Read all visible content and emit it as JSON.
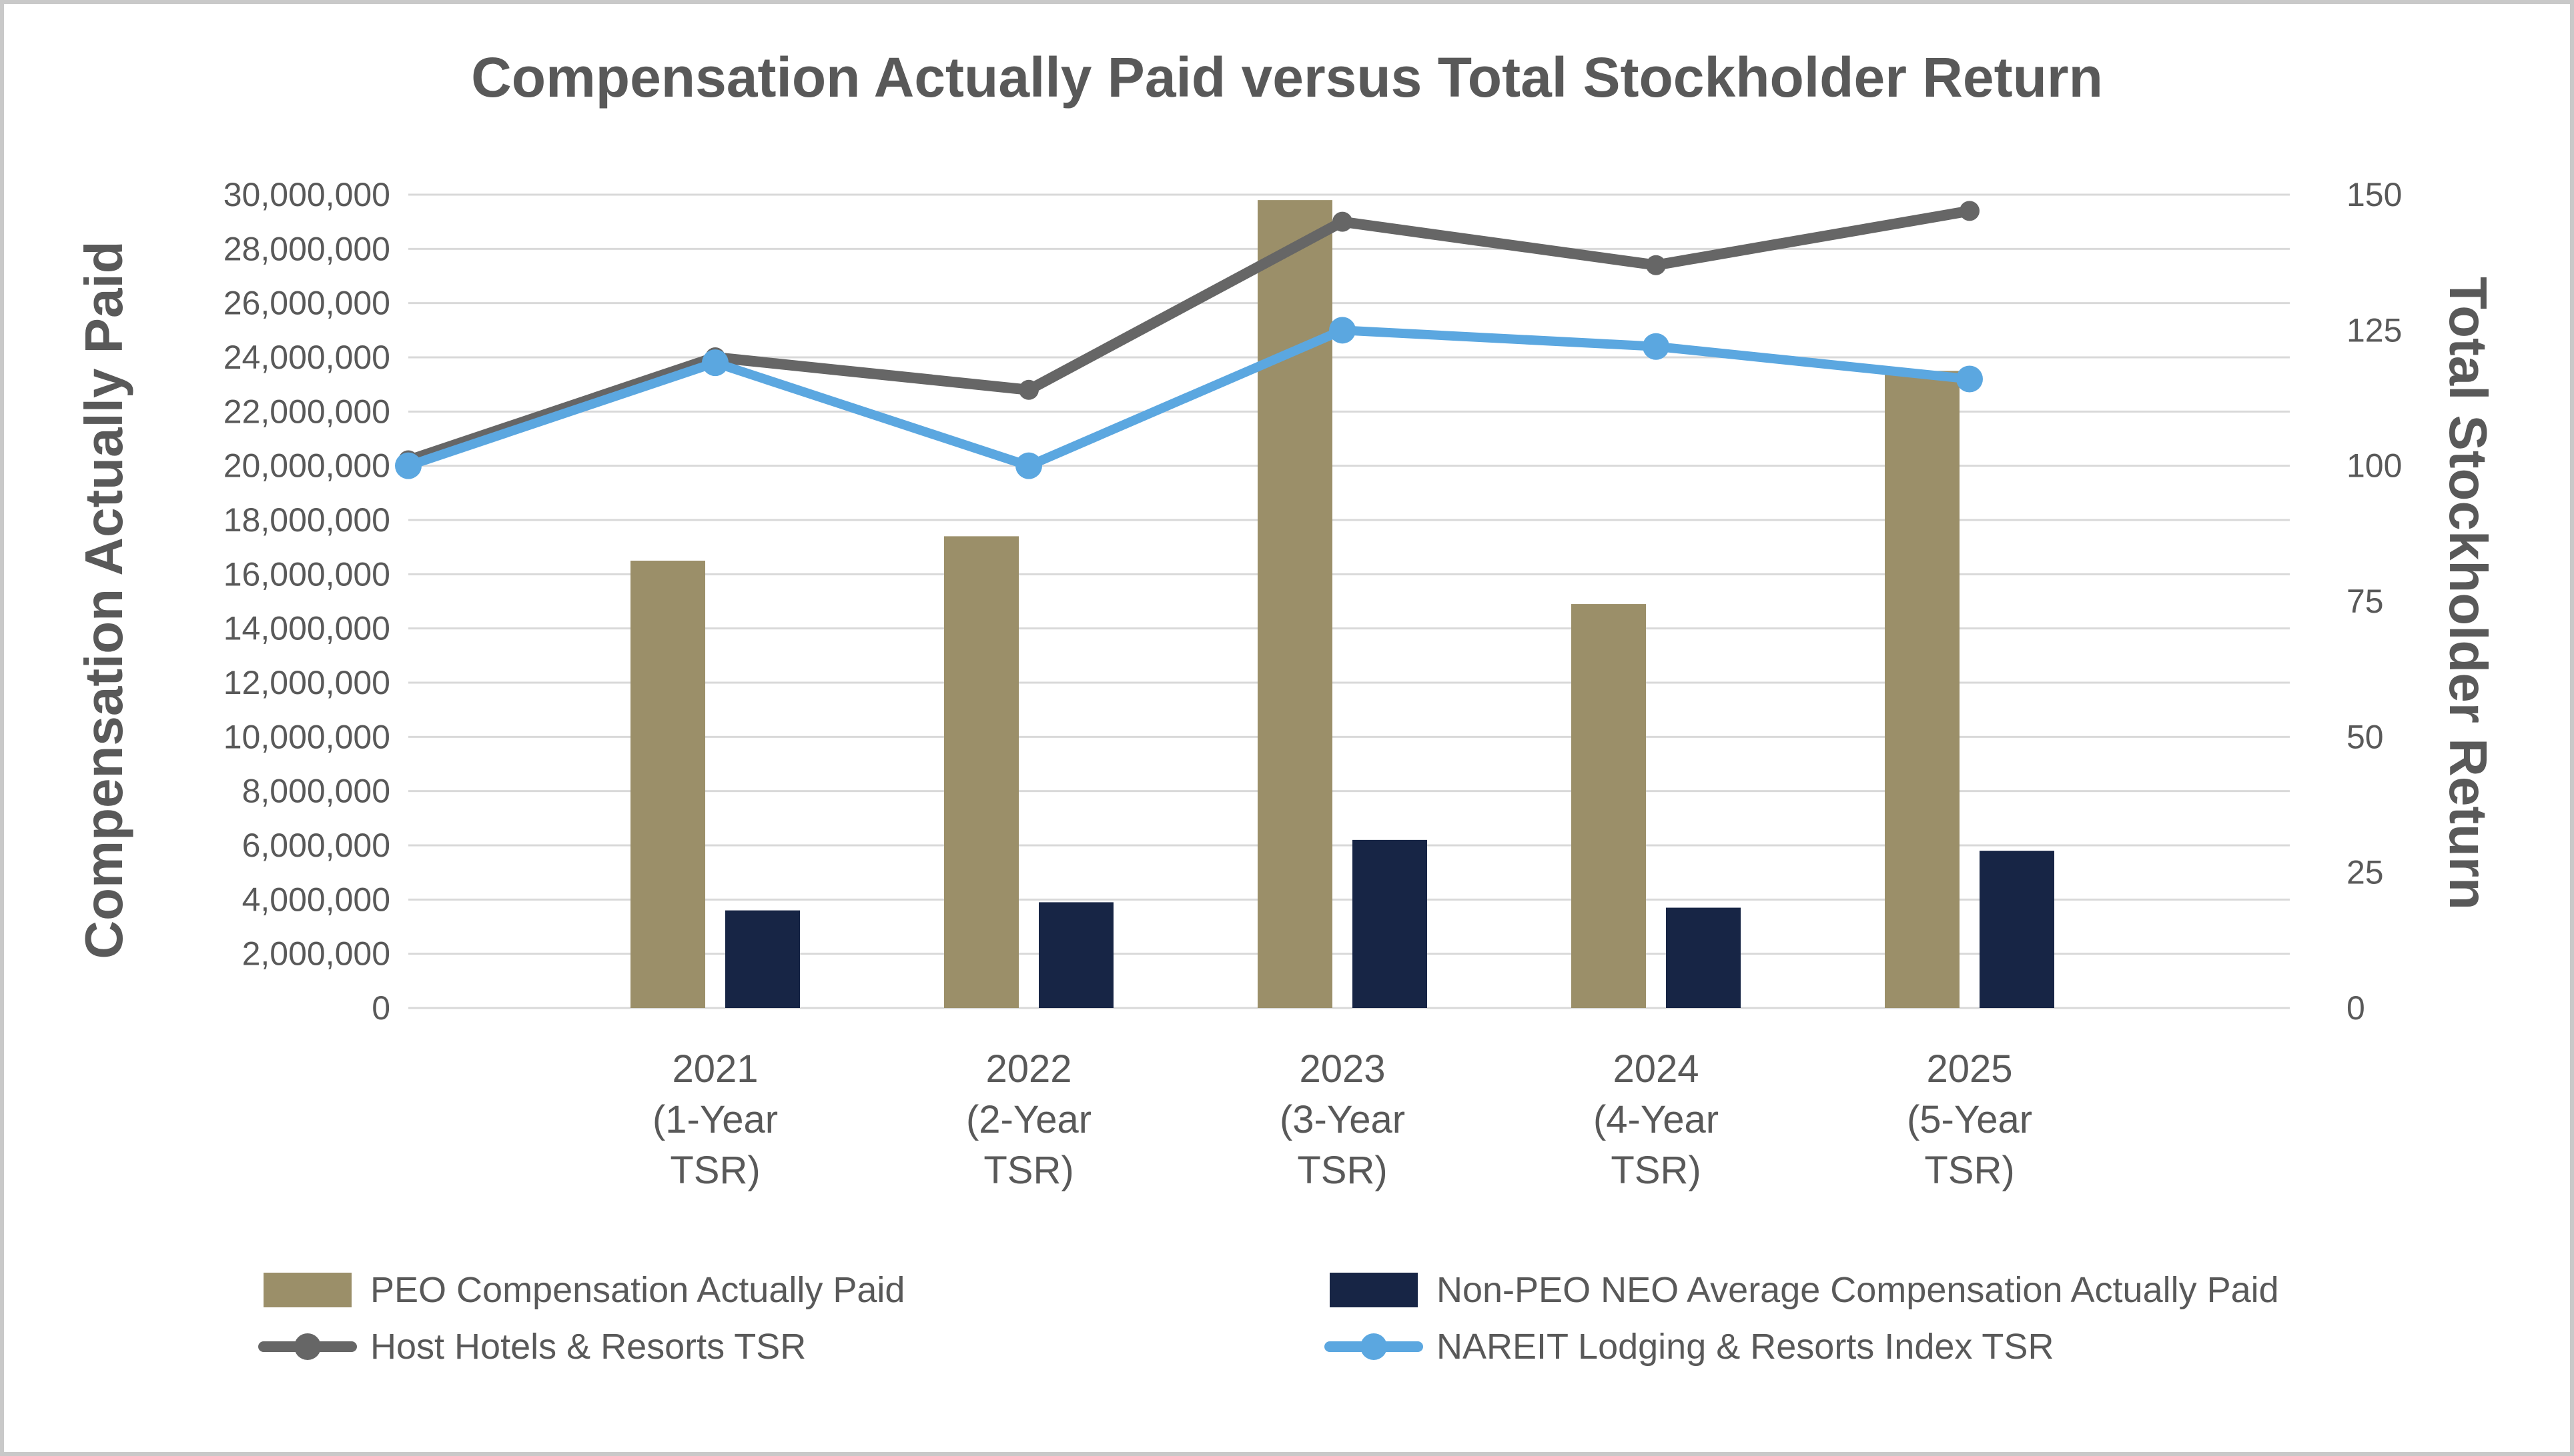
{
  "chart_data": {
    "type": "bar",
    "title": "Compensation Actually Paid versus Total Stockholder Return",
    "categories": [
      [
        "2021",
        "(1-Year",
        "TSR)"
      ],
      [
        "2022",
        "(2-Year",
        "TSR)"
      ],
      [
        "2023",
        "(3-Year",
        "TSR)"
      ],
      [
        "2024",
        "(4-Year",
        "TSR)"
      ],
      [
        "2025",
        "(5-Year",
        "TSR)"
      ]
    ],
    "y_left": {
      "label": "Compensation Actually Paid",
      "range": [
        0,
        30000000
      ],
      "ticks": [
        "0",
        "2,000,000",
        "4,000,000",
        "6,000,000",
        "8,000,000",
        "10,000,000",
        "12,000,000",
        "14,000,000",
        "16,000,000",
        "18,000,000",
        "20,000,000",
        "22,000,000",
        "24,000,000",
        "26,000,000",
        "28,000,000",
        "30,000,000"
      ]
    },
    "y_right": {
      "label": "Total Stockholder Return",
      "range": [
        0,
        150
      ],
      "ticks": [
        "0",
        "25",
        "50",
        "75",
        "100",
        "125",
        "150"
      ]
    },
    "bar_series": [
      {
        "name": "PEO Compensation Actually Paid",
        "color": "#9b8f69",
        "values": [
          16500000,
          17400000,
          29800000,
          14900000,
          23500000
        ]
      },
      {
        "name": "Non-PEO NEO Average Compensation Actually Paid",
        "color": "#172545",
        "values": [
          3600000,
          3900000,
          6200000,
          3700000,
          5800000
        ]
      }
    ],
    "line_series": [
      {
        "name": "Host Hotels & Resorts TSR",
        "color": "#666666",
        "x": [
          "start",
          "2021",
          "2022",
          "2023",
          "2024",
          "2025"
        ],
        "values": [
          101,
          120,
          114,
          145,
          137,
          147
        ]
      },
      {
        "name": "NAREIT Lodging & Resorts Index TSR",
        "color": "#5ba7e0",
        "x": [
          "start",
          "2021",
          "2022",
          "2023",
          "2024",
          "2025"
        ],
        "values": [
          100,
          119,
          100,
          125,
          122,
          116
        ]
      }
    ],
    "grid": true,
    "legend_position": "bottom"
  }
}
